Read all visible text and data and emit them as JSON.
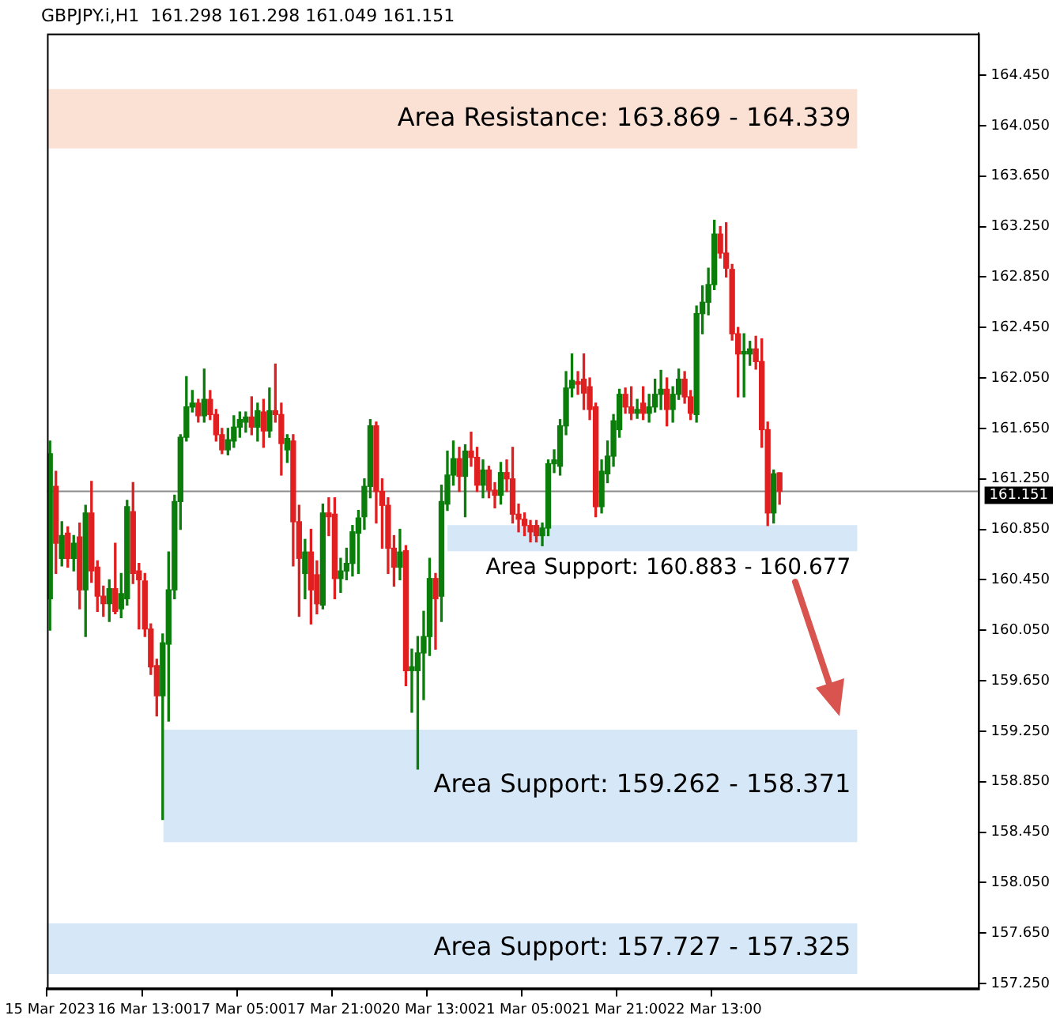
{
  "chart_data": {
    "type": "candlestick",
    "title": "GBPJPY.i,H1  161.298 161.298 161.049 161.151",
    "categories": [
      "15 Mar 2023",
      null,
      null,
      null,
      null,
      null,
      null,
      null,
      null,
      null,
      null,
      null,
      null,
      null,
      null,
      null,
      "16 Mar 13:00",
      null,
      null,
      null,
      null,
      null,
      null,
      null,
      null,
      null,
      null,
      null,
      null,
      null,
      null,
      null,
      "17 Mar 05:00",
      null,
      null,
      null,
      null,
      null,
      null,
      null,
      null,
      null,
      null,
      null,
      null,
      null,
      null,
      null,
      "17 Mar 21:00",
      null,
      null,
      null,
      null,
      null,
      null,
      null,
      null,
      null,
      null,
      null,
      null,
      null,
      null,
      null,
      "20 Mar 13:00",
      null,
      null,
      null,
      null,
      null,
      null,
      null,
      null,
      null,
      null,
      null,
      null,
      null,
      null,
      null,
      "21 Mar 05:00",
      null,
      null,
      null,
      null,
      null,
      null,
      null,
      null,
      null,
      null,
      null,
      null,
      null,
      null,
      null,
      "21 Mar 21:00",
      null,
      null,
      null,
      null,
      null,
      null,
      null,
      null,
      null,
      null,
      null,
      null,
      null,
      null,
      null,
      "22 Mar 13:00",
      null,
      null,
      null,
      null,
      null,
      null,
      null,
      null,
      null,
      null,
      null,
      null,
      null,
      null,
      null,
      null,
      null,
      null,
      null,
      null,
      null,
      null,
      null,
      null,
      null,
      null,
      null,
      null,
      null,
      null,
      null,
      null,
      null,
      null,
      null,
      null,
      null,
      null,
      null,
      null,
      null,
      null,
      null,
      null
    ],
    "ohlc": [
      [
        160.3,
        161.55,
        160.05,
        161.45
      ],
      [
        161.19,
        161.31,
        160.5,
        160.74
      ],
      [
        160.62,
        160.91,
        160.56,
        160.8
      ],
      [
        160.82,
        160.87,
        160.55,
        160.62
      ],
      [
        160.62,
        160.8,
        160.52,
        160.74
      ],
      [
        160.79,
        160.9,
        160.22,
        160.37
      ],
      [
        160.37,
        161.04,
        160.0,
        160.98
      ],
      [
        160.98,
        161.23,
        160.43,
        160.52
      ],
      [
        160.55,
        160.6,
        160.2,
        160.32
      ],
      [
        160.32,
        160.4,
        160.16,
        160.26
      ],
      [
        160.26,
        160.45,
        160.12,
        160.38
      ],
      [
        160.38,
        160.74,
        160.18,
        160.2
      ],
      [
        160.22,
        160.5,
        160.15,
        160.34
      ],
      [
        160.3,
        161.08,
        160.25,
        161.03
      ],
      [
        160.99,
        161.22,
        160.42,
        160.5
      ],
      [
        160.52,
        160.58,
        160.06,
        160.45
      ],
      [
        160.44,
        160.5,
        160.0,
        160.06
      ],
      [
        160.06,
        160.1,
        159.7,
        159.76
      ],
      [
        159.77,
        159.82,
        159.37,
        159.53
      ],
      [
        159.53,
        160.02,
        158.55,
        159.95
      ],
      [
        159.94,
        160.67,
        159.33,
        160.37
      ],
      [
        160.37,
        161.12,
        160.3,
        161.07
      ],
      [
        161.07,
        161.6,
        160.85,
        161.58
      ],
      [
        161.58,
        162.06,
        161.55,
        161.82
      ],
      [
        161.82,
        161.95,
        161.78,
        161.85
      ],
      [
        161.85,
        161.88,
        161.7,
        161.75
      ],
      [
        161.75,
        162.12,
        161.7,
        161.88
      ],
      [
        161.88,
        161.95,
        161.72,
        161.76
      ],
      [
        161.76,
        161.8,
        161.55,
        161.6
      ],
      [
        161.6,
        161.65,
        161.45,
        161.48
      ],
      [
        161.48,
        161.65,
        161.44,
        161.56
      ],
      [
        161.55,
        161.75,
        161.5,
        161.66
      ],
      [
        161.66,
        161.78,
        161.58,
        161.72
      ],
      [
        161.7,
        161.78,
        161.62,
        161.74
      ],
      [
        161.74,
        161.9,
        161.6,
        161.66
      ],
      [
        161.66,
        161.85,
        161.55,
        161.79
      ],
      [
        161.78,
        161.88,
        161.5,
        161.63
      ],
      [
        161.63,
        161.97,
        161.58,
        161.79
      ],
      [
        161.79,
        162.16,
        161.7,
        161.76
      ],
      [
        161.76,
        161.85,
        161.28,
        161.53
      ],
      [
        161.48,
        161.6,
        161.38,
        161.57
      ],
      [
        161.55,
        161.6,
        160.56,
        160.91
      ],
      [
        160.91,
        161.04,
        160.16,
        160.62
      ],
      [
        160.5,
        160.77,
        160.3,
        160.67
      ],
      [
        160.67,
        160.85,
        160.1,
        160.37
      ],
      [
        160.49,
        160.6,
        160.18,
        160.26
      ],
      [
        160.25,
        161.05,
        160.22,
        160.98
      ],
      [
        160.98,
        161.1,
        160.8,
        160.95
      ],
      [
        160.97,
        161.1,
        160.3,
        160.46
      ],
      [
        160.46,
        160.62,
        160.35,
        160.52
      ],
      [
        160.52,
        160.7,
        160.45,
        160.58
      ],
      [
        160.58,
        160.88,
        160.48,
        160.83
      ],
      [
        160.82,
        161.0,
        160.5,
        160.94
      ],
      [
        160.95,
        161.25,
        160.85,
        161.19
      ],
      [
        161.19,
        161.72,
        161.1,
        161.67
      ],
      [
        161.67,
        161.7,
        160.9,
        161.15
      ],
      [
        161.15,
        161.25,
        160.7,
        161.04
      ],
      [
        161.04,
        161.1,
        160.5,
        160.7
      ],
      [
        160.7,
        160.8,
        160.4,
        160.55
      ],
      [
        160.55,
        160.85,
        160.45,
        160.67
      ],
      [
        160.68,
        160.72,
        159.61,
        159.73
      ],
      [
        159.73,
        159.9,
        159.4,
        159.76
      ],
      [
        159.73,
        160.0,
        158.95,
        159.87
      ],
      [
        159.87,
        160.2,
        159.5,
        160.0
      ],
      [
        160.0,
        160.62,
        159.85,
        160.46
      ],
      [
        160.46,
        160.5,
        159.9,
        160.3
      ],
      [
        160.32,
        161.2,
        160.12,
        161.07
      ],
      [
        161.05,
        161.47,
        161.0,
        161.28
      ],
      [
        161.28,
        161.55,
        161.2,
        161.41
      ],
      [
        161.41,
        161.5,
        161.15,
        161.27
      ],
      [
        161.27,
        161.52,
        160.95,
        161.47
      ],
      [
        161.47,
        161.62,
        161.35,
        161.42
      ],
      [
        161.42,
        161.5,
        161.15,
        161.2
      ],
      [
        161.2,
        161.4,
        161.1,
        161.32
      ],
      [
        161.32,
        161.35,
        161.1,
        161.16
      ],
      [
        161.16,
        161.22,
        161.02,
        161.12
      ],
      [
        161.12,
        161.38,
        161.05,
        161.3
      ],
      [
        161.3,
        161.4,
        161.15,
        161.25
      ],
      [
        161.25,
        161.5,
        160.9,
        160.97
      ],
      [
        160.97,
        161.05,
        160.83,
        160.93
      ],
      [
        160.93,
        160.98,
        160.8,
        160.88
      ],
      [
        160.88,
        160.92,
        160.75,
        160.83
      ],
      [
        160.88,
        160.92,
        160.75,
        160.8
      ],
      [
        160.8,
        160.9,
        160.72,
        160.86
      ],
      [
        160.86,
        161.4,
        160.8,
        161.37
      ],
      [
        161.37,
        161.48,
        161.3,
        161.4
      ],
      [
        161.35,
        161.72,
        161.28,
        161.67
      ],
      [
        161.67,
        162.1,
        161.6,
        161.97
      ],
      [
        161.97,
        162.24,
        161.9,
        162.03
      ],
      [
        162.02,
        162.1,
        161.92,
        162.0
      ],
      [
        162.04,
        162.24,
        161.8,
        161.93
      ],
      [
        161.98,
        162.05,
        161.72,
        161.8
      ],
      [
        161.82,
        161.85,
        160.95,
        161.03
      ],
      [
        161.03,
        161.4,
        160.98,
        161.31
      ],
      [
        161.29,
        161.55,
        161.22,
        161.43
      ],
      [
        161.43,
        161.76,
        161.35,
        161.71
      ],
      [
        161.64,
        161.96,
        161.58,
        161.92
      ],
      [
        161.92,
        161.97,
        161.77,
        161.82
      ],
      [
        161.82,
        161.98,
        161.72,
        161.77
      ],
      [
        161.77,
        161.88,
        161.73,
        161.8
      ],
      [
        161.85,
        161.98,
        161.72,
        161.77
      ],
      [
        161.77,
        161.92,
        161.7,
        161.82
      ],
      [
        161.82,
        162.04,
        161.78,
        161.92
      ],
      [
        161.92,
        162.11,
        161.8,
        161.96
      ],
      [
        161.96,
        162.05,
        161.67,
        161.8
      ],
      [
        161.8,
        161.98,
        161.7,
        161.92
      ],
      [
        161.92,
        162.12,
        161.88,
        162.04
      ],
      [
        162.04,
        162.1,
        161.85,
        161.9
      ],
      [
        161.9,
        161.95,
        161.72,
        161.77
      ],
      [
        161.76,
        162.62,
        161.7,
        162.56
      ],
      [
        162.56,
        162.78,
        162.4,
        162.65
      ],
      [
        162.65,
        162.92,
        162.55,
        162.79
      ],
      [
        162.79,
        163.3,
        162.75,
        163.19
      ],
      [
        163.19,
        163.25,
        163.0,
        163.04
      ],
      [
        163.04,
        163.28,
        162.85,
        162.92
      ],
      [
        162.91,
        162.95,
        162.35,
        162.4
      ],
      [
        162.4,
        162.45,
        161.9,
        162.24
      ],
      [
        162.24,
        162.4,
        161.9,
        162.26
      ],
      [
        162.24,
        162.34,
        162.15,
        162.28
      ],
      [
        162.28,
        162.38,
        162.12,
        162.18
      ],
      [
        162.18,
        162.36,
        161.5,
        161.64
      ],
      [
        161.64,
        161.7,
        160.88,
        160.98
      ],
      [
        160.98,
        161.32,
        160.9,
        161.29
      ],
      [
        161.298,
        161.298,
        161.049,
        161.151
      ],
      null,
      null,
      null,
      null,
      null,
      null,
      null,
      null,
      null,
      null,
      null,
      null,
      null,
      null,
      null,
      null,
      null,
      null,
      null,
      null,
      null,
      null,
      null,
      null,
      null,
      null,
      null,
      null,
      null,
      null,
      null,
      null,
      null
    ],
    "colors": [
      "#0a7d0a",
      "#e02020",
      "#0a7d0a",
      "#e02020",
      "#0a7d0a",
      "#e02020",
      "#0a7d0a",
      "#e02020",
      "#e02020",
      "#e02020",
      "#0a7d0a",
      "#e02020",
      "#0a7d0a",
      "#0a7d0a",
      "#e02020",
      "#e02020",
      "#e02020",
      "#e02020",
      "#e02020",
      "#0a7d0a",
      "#0a7d0a",
      "#0a7d0a",
      "#0a7d0a",
      "#0a7d0a",
      "#0a7d0a",
      "#e02020",
      "#0a7d0a",
      "#e02020",
      "#e02020",
      "#e02020",
      "#0a7d0a",
      "#0a7d0a",
      "#0a7d0a",
      "#0a7d0a",
      "#e02020",
      "#0a7d0a",
      "#e02020",
      "#0a7d0a",
      "#e02020",
      "#e02020",
      "#0a7d0a",
      "#e02020",
      "#e02020",
      "#0a7d0a",
      "#e02020",
      "#e02020",
      "#0a7d0a",
      "#e02020",
      "#e02020",
      "#0a7d0a",
      "#0a7d0a",
      "#0a7d0a",
      "#0a7d0a",
      "#0a7d0a",
      "#0a7d0a",
      "#e02020",
      "#e02020",
      "#e02020",
      "#e02020",
      "#0a7d0a",
      "#e02020",
      "#0a7d0a",
      "#0a7d0a",
      "#0a7d0a",
      "#0a7d0a",
      "#e02020",
      "#0a7d0a",
      "#0a7d0a",
      "#0a7d0a",
      "#e02020",
      "#0a7d0a",
      "#e02020",
      "#e02020",
      "#0a7d0a",
      "#e02020",
      "#e02020",
      "#0a7d0a",
      "#e02020",
      "#e02020",
      "#e02020",
      "#e02020",
      "#e02020",
      "#e02020",
      "#0a7d0a",
      "#0a7d0a",
      "#0a7d0a",
      "#0a7d0a",
      "#0a7d0a",
      "#0a7d0a",
      "#e02020",
      "#e02020",
      "#e02020",
      "#e02020",
      "#0a7d0a",
      "#0a7d0a",
      "#0a7d0a",
      "#0a7d0a",
      "#e02020",
      "#e02020",
      "#0a7d0a",
      "#e02020",
      "#0a7d0a",
      "#0a7d0a",
      "#0a7d0a",
      "#e02020",
      "#0a7d0a",
      "#0a7d0a",
      "#e02020",
      "#e02020",
      "#0a7d0a",
      "#0a7d0a",
      "#0a7d0a",
      "#0a7d0a",
      "#e02020",
      "#e02020",
      "#e02020",
      "#e02020",
      "#0a7d0a",
      "#0a7d0a",
      "#e02020",
      "#e02020",
      "#e02020",
      "#0a7d0a",
      "#e02020",
      null,
      null,
      null,
      null,
      null,
      null,
      null,
      null,
      null,
      null,
      null,
      null,
      null,
      null,
      null,
      null,
      null,
      null,
      null,
      null,
      null,
      null,
      null,
      null,
      null,
      null,
      null,
      null,
      null,
      null,
      null,
      null,
      null
    ],
    "ylim": [
      157.21,
      164.78
    ],
    "yticks": [
      {
        "value": 157.25,
        "label": "157.250"
      },
      {
        "value": 157.65,
        "label": "157.650"
      },
      {
        "value": 158.05,
        "label": "158.050"
      },
      {
        "value": 158.45,
        "label": "158.450"
      },
      {
        "value": 158.85,
        "label": "158.850"
      },
      {
        "value": 159.25,
        "label": "159.250"
      },
      {
        "value": 159.65,
        "label": "159.650"
      },
      {
        "value": 160.05,
        "label": "160.050"
      },
      {
        "value": 160.45,
        "label": "160.450"
      },
      {
        "value": 160.85,
        "label": "160.850"
      },
      {
        "value": 161.25,
        "label": "161.250"
      },
      {
        "value": 161.65,
        "label": "161.650"
      },
      {
        "value": 162.05,
        "label": "162.050"
      },
      {
        "value": 162.45,
        "label": "162.450"
      },
      {
        "value": 162.85,
        "label": "162.850"
      },
      {
        "value": 163.25,
        "label": "163.250"
      },
      {
        "value": 163.65,
        "label": "163.650"
      },
      {
        "value": 164.05,
        "label": "164.050"
      },
      {
        "value": 164.45,
        "label": "164.450"
      }
    ],
    "bands": [
      {
        "axis": "y",
        "from": 163.869,
        "to": 164.339,
        "label": "Area Resistance: 163.869 - 164.339",
        "color": "#fbe0d4"
      },
      {
        "axis": "y",
        "from": 160.677,
        "to": 160.883,
        "label": "Area Support: 160.883 - 160.677",
        "color": "#d6e8f8"
      },
      {
        "axis": "y",
        "from": 158.371,
        "to": 159.262,
        "label": "Area Support: 159.262 - 158.371",
        "color": "#d6e8f8"
      },
      {
        "axis": "y",
        "from": 157.325,
        "to": 157.727,
        "label": "Area Support: 157.727 - 157.325",
        "color": "#d6e8f8"
      }
    ],
    "ref_lines": [
      {
        "axis": "y",
        "value": 161.151,
        "label": "161.151",
        "color": "#8c8c8c"
      }
    ],
    "grid": false,
    "legend": false
  }
}
